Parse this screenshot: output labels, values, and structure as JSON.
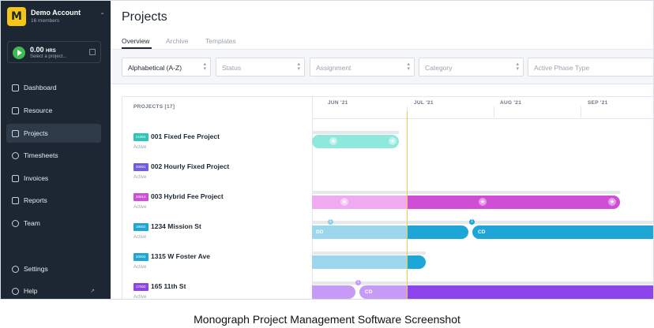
{
  "account": {
    "name": "Demo Account",
    "members": "16 members",
    "logo_letter": "M"
  },
  "timer": {
    "hours": "0.00",
    "unit": "HRS",
    "placeholder": "Select a project..."
  },
  "nav": [
    {
      "label": "Dashboard",
      "icon": "dashboard-icon"
    },
    {
      "label": "Resource",
      "icon": "resource-icon"
    },
    {
      "label": "Projects",
      "icon": "projects-icon",
      "active": true
    },
    {
      "label": "Timesheets",
      "icon": "clock-icon"
    },
    {
      "label": "Invoices",
      "icon": "invoice-icon"
    },
    {
      "label": "Reports",
      "icon": "reports-icon"
    },
    {
      "label": "Team",
      "icon": "team-icon"
    }
  ],
  "nav_bottom": [
    {
      "label": "Settings",
      "icon": "gear-icon"
    },
    {
      "label": "Help",
      "icon": "help-icon"
    }
  ],
  "page": {
    "title": "Projects"
  },
  "tabs": [
    "Overview",
    "Archive",
    "Templates"
  ],
  "filters": {
    "sort": "Alphabetical (A-Z)",
    "status": "Status",
    "assignment": "Assignment",
    "category": "Category",
    "phase_type": "Active Phase Type"
  },
  "timeline": {
    "projects_header": "PROJECTS [17]",
    "months": [
      "JUN '21",
      "JUL '21",
      "AUG '21",
      "SEP '21"
    ]
  },
  "projects": [
    {
      "code": "21001",
      "name": "001 Fixed Fee Project",
      "status": "Active",
      "color": "#2ec4b6"
    },
    {
      "code": "20001",
      "name": "002 Hourly Fixed Project",
      "status": "Active",
      "color": "#6c5ce7"
    },
    {
      "code": "20013",
      "name": "003 Hybrid Fee Project",
      "status": "Active",
      "color": "#d04ed6"
    },
    {
      "code": "19002",
      "name": "1234 Mission St",
      "status": "Active",
      "color": "#1ea7d6"
    },
    {
      "code": "20002",
      "name": "1315 W Foster Ave",
      "status": "Active",
      "color": "#1ea7d6"
    },
    {
      "code": "17002",
      "name": "165 11th St",
      "status": "Active",
      "color": "#8e44ec"
    }
  ],
  "phase_labels": {
    "dd": "DD",
    "cd": "CD"
  },
  "caption": "Monograph Project Management Software Screenshot",
  "colors": {
    "sidebar": "#1c2733",
    "accent": "#f5c518",
    "today_line": "#f2c94c"
  }
}
